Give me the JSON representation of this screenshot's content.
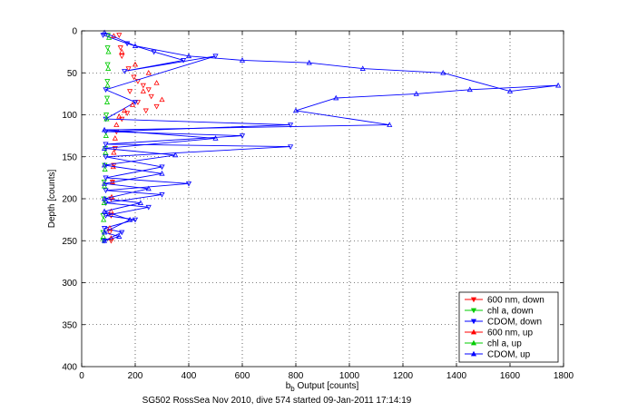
{
  "chart_data": {
    "type": "scatter",
    "title": "",
    "xlabel": "b_b Output [counts]",
    "xlabel_main": "b",
    "xlabel_sub": "b",
    "xlabel_rest": " Output [counts]",
    "ylabel": "Depth [counts]",
    "caption": "SG502 RossSea Nov 2010, dive 574 started 09-Jan-2011 17:14:19",
    "xlim": [
      0,
      1800
    ],
    "ylim": [
      400,
      0
    ],
    "y_reversed": true,
    "grid": true,
    "legend_position": "bottom-right",
    "xticks": [
      0,
      200,
      400,
      600,
      800,
      1000,
      1200,
      1400,
      1600,
      1800
    ],
    "yticks": [
      0,
      50,
      100,
      150,
      200,
      250,
      300,
      350,
      400
    ],
    "series": [
      {
        "name": "600 nm, down",
        "color": "#ff0000",
        "marker": "triangle-down",
        "connected": false,
        "points": [
          [
            140,
            5
          ],
          [
            145,
            20
          ],
          [
            150,
            30
          ],
          [
            175,
            45
          ],
          [
            195,
            55
          ],
          [
            210,
            60
          ],
          [
            230,
            65
          ],
          [
            250,
            70
          ],
          [
            180,
            72
          ],
          [
            260,
            78
          ],
          [
            210,
            85
          ],
          [
            280,
            90
          ],
          [
            240,
            95
          ],
          [
            170,
            98
          ],
          [
            150,
            105
          ],
          [
            130,
            120
          ],
          [
            125,
            140
          ],
          [
            120,
            160
          ],
          [
            115,
            180
          ],
          [
            110,
            200
          ],
          [
            110,
            220
          ],
          [
            105,
            240
          ],
          [
            110,
            250
          ]
        ]
      },
      {
        "name": "chl a, down",
        "color": "#00cc00",
        "marker": "triangle-down",
        "connected": false,
        "points": [
          [
            98,
            5
          ],
          [
            97,
            20
          ],
          [
            97,
            40
          ],
          [
            96,
            60
          ],
          [
            95,
            80
          ],
          [
            92,
            100
          ],
          [
            90,
            120
          ],
          [
            88,
            140
          ],
          [
            86,
            160
          ],
          [
            84,
            180
          ],
          [
            83,
            200
          ],
          [
            80,
            220
          ],
          [
            80,
            240
          ],
          [
            80,
            250
          ]
        ]
      },
      {
        "name": "CDOM, down",
        "color": "#0000ff",
        "marker": "triangle-down",
        "connected": true,
        "points": [
          [
            80,
            5
          ],
          [
            170,
            15
          ],
          [
            270,
            25
          ],
          [
            380,
            35
          ],
          [
            160,
            48
          ],
          [
            500,
            30
          ],
          [
            90,
            70
          ],
          [
            200,
            85
          ],
          [
            90,
            105
          ],
          [
            780,
            112
          ],
          [
            90,
            120
          ],
          [
            600,
            125
          ],
          [
            90,
            135
          ],
          [
            780,
            138
          ],
          [
            90,
            150
          ],
          [
            300,
            162
          ],
          [
            90,
            175
          ],
          [
            400,
            182
          ],
          [
            90,
            190
          ],
          [
            300,
            195
          ],
          [
            90,
            205
          ],
          [
            250,
            210
          ],
          [
            90,
            220
          ],
          [
            200,
            225
          ],
          [
            85,
            235
          ],
          [
            150,
            240
          ],
          [
            85,
            250
          ]
        ]
      },
      {
        "name": "600 nm, up",
        "color": "#ff0000",
        "marker": "triangle-up",
        "connected": false,
        "points": [
          [
            120,
            6
          ],
          [
            150,
            25
          ],
          [
            200,
            40
          ],
          [
            250,
            50
          ],
          [
            280,
            62
          ],
          [
            230,
            72
          ],
          [
            300,
            82
          ],
          [
            190,
            88
          ],
          [
            160,
            95
          ],
          [
            140,
            102
          ],
          [
            130,
            112
          ],
          [
            125,
            128
          ],
          [
            120,
            145
          ],
          [
            118,
            162
          ],
          [
            115,
            180
          ],
          [
            112,
            198
          ],
          [
            110,
            215
          ],
          [
            105,
            235
          ],
          [
            110,
            247
          ]
        ]
      },
      {
        "name": "chl a, up",
        "color": "#00cc00",
        "marker": "triangle-up",
        "connected": false,
        "points": [
          [
            102,
            8
          ],
          [
            100,
            25
          ],
          [
            99,
            45
          ],
          [
            97,
            65
          ],
          [
            95,
            85
          ],
          [
            93,
            105
          ],
          [
            91,
            125
          ],
          [
            89,
            145
          ],
          [
            87,
            165
          ],
          [
            85,
            185
          ],
          [
            84,
            205
          ],
          [
            82,
            225
          ],
          [
            81,
            245
          ]
        ]
      },
      {
        "name": "CDOM, up",
        "color": "#0000ff",
        "marker": "triangle-up",
        "connected": true,
        "points": [
          [
            85,
            2
          ],
          [
            200,
            18
          ],
          [
            400,
            30
          ],
          [
            600,
            35
          ],
          [
            850,
            38
          ],
          [
            1050,
            45
          ],
          [
            1350,
            50
          ],
          [
            1600,
            72
          ],
          [
            1780,
            65
          ],
          [
            1450,
            70
          ],
          [
            1250,
            75
          ],
          [
            950,
            80
          ],
          [
            800,
            95
          ],
          [
            1150,
            112
          ],
          [
            85,
            118
          ],
          [
            500,
            128
          ],
          [
            85,
            140
          ],
          [
            350,
            148
          ],
          [
            85,
            160
          ],
          [
            300,
            170
          ],
          [
            85,
            182
          ],
          [
            250,
            188
          ],
          [
            85,
            200
          ],
          [
            220,
            205
          ],
          [
            85,
            215
          ],
          [
            180,
            225
          ],
          [
            85,
            240
          ],
          [
            140,
            245
          ],
          [
            85,
            250
          ]
        ]
      }
    ]
  }
}
